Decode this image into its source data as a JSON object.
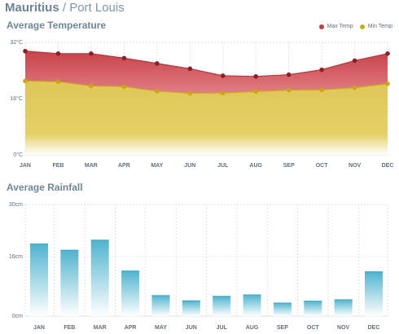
{
  "header": {
    "country": "Mauritius",
    "separator": "/",
    "city": "Port Louis"
  },
  "temperature_section": {
    "title": "Average Temperature"
  },
  "rainfall_section": {
    "title": "Average Rainfall"
  },
  "colors": {
    "max": "#c63a43",
    "min": "#c8ad1e",
    "bar": "#53b8d2",
    "grid": "#d6d6d6"
  },
  "chart_data": [
    {
      "type": "area",
      "title": "Average Temperature",
      "categories": [
        "JAN",
        "FEB",
        "MAR",
        "APR",
        "MAY",
        "JUN",
        "JUL",
        "AUG",
        "SEP",
        "OCT",
        "NOV",
        "DEC"
      ],
      "series": [
        {
          "name": "Max Temp",
          "values": [
            29.5,
            28.8,
            28.8,
            27.5,
            26.0,
            24.5,
            22.5,
            22.3,
            22.8,
            24.2,
            26.8,
            28.8
          ]
        },
        {
          "name": "Min Temp",
          "values": [
            21.0,
            20.8,
            19.6,
            19.4,
            18.1,
            17.5,
            17.6,
            18.0,
            18.4,
            18.5,
            19.1,
            20.2
          ]
        }
      ],
      "yticks": [
        "0°C",
        "16°C",
        "32°C"
      ],
      "ylim": [
        0,
        32
      ],
      "grid": true,
      "legend": "top-right"
    },
    {
      "type": "bar",
      "title": "Average Rainfall",
      "categories": [
        "JAN",
        "FEB",
        "MAR",
        "APR",
        "MAY",
        "JUN",
        "JUL",
        "AUG",
        "SEP",
        "OCT",
        "NOV",
        "DEC"
      ],
      "values": [
        19.5,
        17.8,
        20.5,
        12.2,
        5.6,
        4.2,
        5.4,
        5.8,
        3.6,
        4.1,
        4.5,
        12.0
      ],
      "yticks": [
        "0cm",
        "16cm",
        "30cm"
      ],
      "ylim": [
        0,
        30
      ],
      "grid": true
    }
  ]
}
